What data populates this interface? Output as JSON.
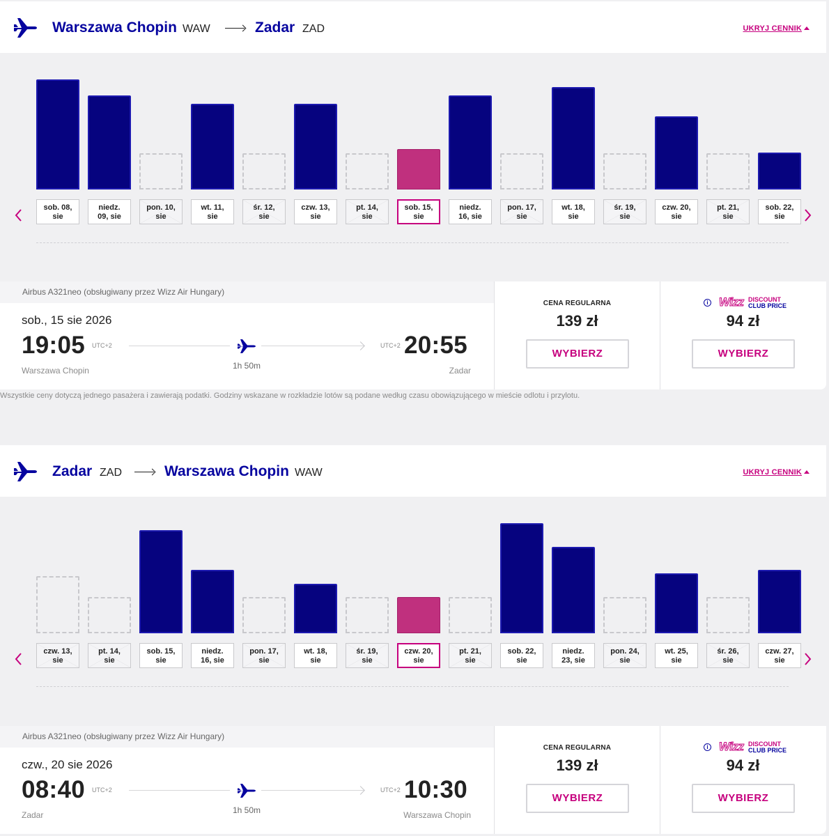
{
  "outbound": {
    "from_city": "Warszawa Chopin",
    "from_code": "WAW",
    "to_city": "Zadar",
    "to_code": "ZAD",
    "hide_label": "UKRYJ CENNIK",
    "chart_data": {
      "type": "bar",
      "categories": [
        "sob. 08,\nsie",
        "niedz.\n09, sie",
        "pon. 10,\nsie",
        "wt. 11,\nsie",
        "śr. 12,\nsie",
        "czw. 13,\nsie",
        "pt. 14,\nsie",
        "sob. 15,\nsie",
        "niedz.\n16, sie",
        "pon. 17,\nsie",
        "wt. 18,\nsie",
        "śr. 19,\nsie",
        "czw. 20,\nsie",
        "pt. 21,\nsie",
        "sob. 22,\nsie"
      ],
      "values": [
        158,
        135,
        null,
        123,
        null,
        123,
        null,
        58,
        135,
        null,
        147,
        null,
        105,
        null,
        53
      ],
      "available": [
        true,
        true,
        false,
        true,
        false,
        true,
        false,
        true,
        true,
        false,
        true,
        false,
        true,
        false,
        true
      ],
      "selected_index": 7
    },
    "flight": {
      "aircraft": "Airbus A321neo (obsługiwany przez Wizz Air Hungary)",
      "date": "sob., 15 sie 2026",
      "dep_time": "19:05",
      "dep_utc": "UTC+2",
      "arr_time": "20:55",
      "arr_utc": "UTC+2",
      "duration": "1h 50m",
      "from": "Warszawa Chopin",
      "to": "Zadar",
      "regular_label": "CENA REGULARNA",
      "regular_price": "139 zł",
      "club_price": "94 zł",
      "select_label": "WYBIERZ"
    }
  },
  "footnote": "Wszystkie ceny dotyczą jednego pasażera i zawierają podatki. Godziny wskazane w rozkładzie lotów są podane według czasu obowiązującego w mieście odlotu i przylotu.",
  "club": {
    "wizz": "Wizz",
    "discount": "DISCOUNT",
    "club_price": "CLUB PRICE",
    "info": "i"
  },
  "inbound": {
    "from_city": "Zadar",
    "from_code": "ZAD",
    "to_city": "Warszawa Chopin",
    "to_code": "WAW",
    "hide_label": "UKRYJ CENNIK",
    "chart_data": {
      "type": "bar",
      "categories": [
        "czw. 13,\nsie",
        "pt. 14,\nsie",
        "sob. 15,\nsie",
        "niedz.\n16, sie",
        "pon. 17,\nsie",
        "wt. 18,\nsie",
        "śr. 19,\nsie",
        "czw. 20,\nsie",
        "pt. 21,\nsie",
        "sob. 22,\nsie",
        "niedz.\n23, sie",
        "pon. 24,\nsie",
        "wt. 25,\nsie",
        "śr. 26,\nsie",
        "czw. 27,\nsie"
      ],
      "values": [
        null,
        null,
        148,
        91,
        null,
        71,
        null,
        52,
        null,
        158,
        124,
        null,
        86,
        null,
        91
      ],
      "available": [
        false,
        false,
        true,
        true,
        false,
        true,
        false,
        true,
        false,
        true,
        true,
        false,
        true,
        false,
        true
      ],
      "selected_index": 7
    },
    "flight": {
      "aircraft": "Airbus A321neo (obsługiwany przez Wizz Air Hungary)",
      "date": "czw., 20 sie 2026",
      "dep_time": "08:40",
      "dep_utc": "UTC+2",
      "arr_time": "10:30",
      "arr_utc": "UTC+2",
      "duration": "1h 50m",
      "from": "Zadar",
      "to": "Warszawa Chopin",
      "regular_label": "CENA REGULARNA",
      "regular_price": "139 zł",
      "club_price": "94 zł",
      "select_label": "WYBIERZ"
    }
  },
  "colors": {
    "brand_blue": "#06037f",
    "brand_pink": "#c6007e"
  }
}
